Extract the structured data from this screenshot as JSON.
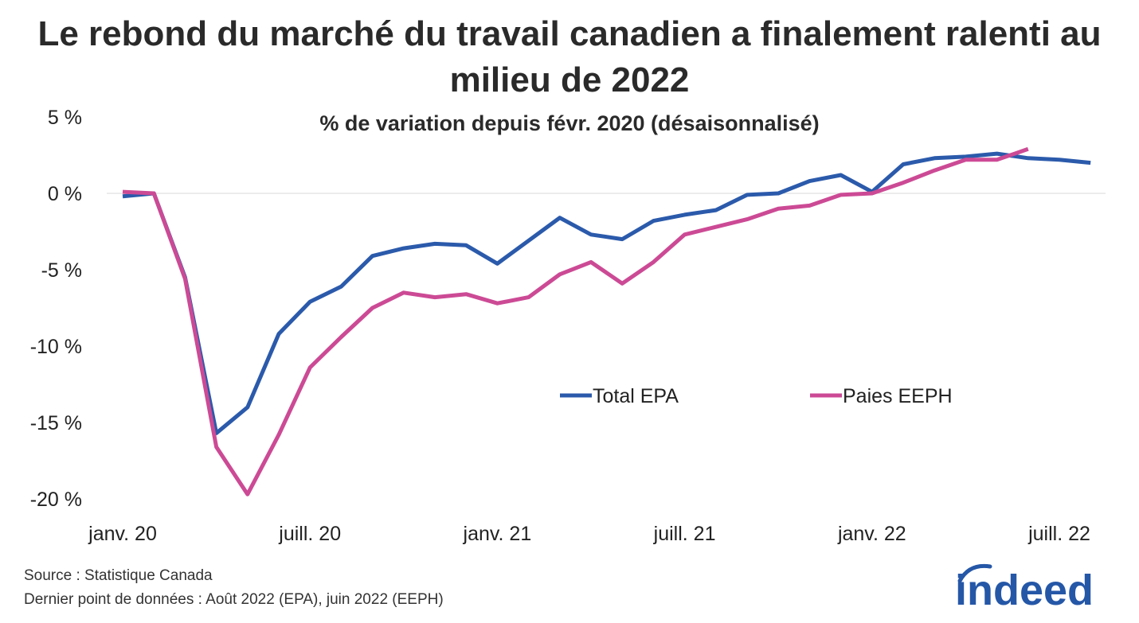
{
  "title": "Le rebond du marché du travail canadien a finalement ralenti au milieu de 2022",
  "chart_data": {
    "type": "line",
    "title": "Le rebond du marché du travail canadien a finalement ralenti au milieu de 2022",
    "subtitle": "% de variation depuis févr. 2020 (désaisonnalisé)",
    "xlabel": "",
    "ylabel": "",
    "ylim": [
      -20,
      5
    ],
    "yticks": [
      5,
      0,
      -5,
      -10,
      -15,
      -20
    ],
    "ytick_labels": [
      "5 %",
      "0 %",
      "-5 %",
      "-10 %",
      "-15 %",
      "-20 %"
    ],
    "x_start_month": "2020-01",
    "x_months_count": 32,
    "xtick_labels": [
      {
        "index": 0,
        "label": "janv. 20"
      },
      {
        "index": 6,
        "label": "juill. 20"
      },
      {
        "index": 12,
        "label": "janv. 21"
      },
      {
        "index": 18,
        "label": "juill. 21"
      },
      {
        "index": 24,
        "label": "janv. 22"
      },
      {
        "index": 30,
        "label": "juill. 22"
      }
    ],
    "zero_line": true,
    "legend_position": "center-right",
    "series": [
      {
        "name": "Total EPA",
        "color": "#2b5aab",
        "values": [
          -0.2,
          0.0,
          -5.5,
          -15.7,
          -14.0,
          -9.2,
          -7.1,
          -6.1,
          -4.1,
          -3.6,
          -3.3,
          -3.4,
          -4.6,
          -3.1,
          -1.6,
          -2.7,
          -3.0,
          -1.8,
          -1.4,
          -1.1,
          -0.1,
          0.0,
          0.8,
          1.2,
          0.1,
          1.9,
          2.3,
          2.4,
          2.6,
          2.3,
          2.2,
          2.0
        ]
      },
      {
        "name": "Paies EEPH",
        "color": "#cc4a95",
        "values": [
          0.1,
          0.0,
          -5.6,
          -16.6,
          -19.7,
          -15.8,
          -11.4,
          -9.4,
          -7.5,
          -6.5,
          -6.8,
          -6.6,
          -7.2,
          -6.8,
          -5.3,
          -4.5,
          -5.9,
          -4.5,
          -2.7,
          -2.2,
          -1.7,
          -1.0,
          -0.8,
          -0.1,
          0.0,
          0.7,
          1.5,
          2.2,
          2.2,
          2.9
        ]
      }
    ]
  },
  "footer": {
    "source": "Source : Statistique Canada",
    "last_data_point": "Dernier point de données : Août 2022 (EPA), juin 2022 (EEPH)"
  },
  "logo": {
    "text": "indeed",
    "color": "#2557a7"
  }
}
